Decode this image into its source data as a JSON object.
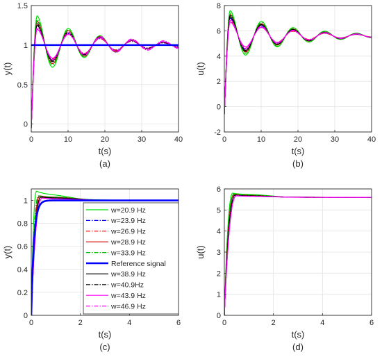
{
  "figure": {
    "legend_entries": [
      {
        "label": "w=20.9 Hz",
        "color": "#00e000",
        "dash": "solid",
        "width": 1.2
      },
      {
        "label": "w=23.9 Hz",
        "color": "#0000ff",
        "dash": "dashdot",
        "width": 1.2
      },
      {
        "label": "w=26.9 Hz",
        "color": "#ff0000",
        "dash": "dashdot",
        "width": 1.2
      },
      {
        "label": "w=28.9 Hz",
        "color": "#d00000",
        "dash": "solid",
        "width": 1.2
      },
      {
        "label": "w=33.9 Hz",
        "color": "#00c000",
        "dash": "dashdot",
        "width": 1.2
      },
      {
        "label": "Reference signal",
        "color": "#0000ff",
        "dash": "solid",
        "width": 2.6
      },
      {
        "label": "w=38.9 Hz",
        "color": "#000000",
        "dash": "solid",
        "width": 1.2
      },
      {
        "label": "w=40.9Hz",
        "color": "#000000",
        "dash": "dashdot",
        "width": 1.2
      },
      {
        "label": "w=43.9 Hz",
        "color": "#ff00ff",
        "dash": "solid",
        "width": 1.2
      },
      {
        "label": "w=46.9 Hz",
        "color": "#ff00ff",
        "dash": "dashdot",
        "width": 1.2
      }
    ],
    "legend_in_panel": "c",
    "legend_placement": "right"
  },
  "chart_data": [
    {
      "id": "a",
      "type": "line",
      "caption": "(a)",
      "xlabel": "t(s)",
      "ylabel": "y(t)",
      "xlim": [
        0,
        40
      ],
      "ylim": [
        -0.1,
        1.5
      ],
      "xticks": [
        0,
        10,
        20,
        30,
        40
      ],
      "yticks": [
        0,
        0.5,
        1,
        1.5
      ],
      "xtick_labels": [
        "0",
        "10",
        "20",
        "30",
        "40"
      ],
      "ytick_labels": [
        "0",
        "0.5",
        "1",
        "1.5"
      ],
      "grid": true,
      "settle": 1.0,
      "start": -0.05,
      "reference": 1.0,
      "series": [
        {
          "label": "w=20.9 Hz",
          "peaks": [
            [
              0,
              1.37
            ],
            [
              1.8,
              0.78
            ],
            [
              9.8,
              1.06
            ],
            [
              13.5,
              0.98
            ],
            [
              20,
              1.01
            ]
          ]
        },
        {
          "label": "w=23.9 Hz",
          "peaks": [
            [
              0,
              1.25
            ],
            [
              1.9,
              0.85
            ],
            [
              9.8,
              1.05
            ],
            [
              14,
              0.99
            ],
            [
              20,
              1.0
            ]
          ]
        },
        {
          "label": "w=26.9 Hz",
          "peaks": [
            [
              0,
              1.22
            ],
            [
              1.9,
              0.86
            ],
            [
              10,
              1.04
            ],
            [
              14,
              0.99
            ],
            [
              20,
              1.0
            ]
          ]
        },
        {
          "label": "w=28.9 Hz",
          "peaks": [
            [
              0,
              1.3
            ],
            [
              1.9,
              0.81
            ],
            [
              10.2,
              1.07
            ],
            [
              14,
              0.98
            ],
            [
              20,
              1.01
            ]
          ]
        },
        {
          "label": "w=33.9 Hz",
          "peaks": [
            [
              0,
              1.32
            ],
            [
              2.0,
              0.8
            ],
            [
              10.5,
              1.06
            ],
            [
              14.5,
              0.98
            ],
            [
              20,
              1.01
            ]
          ]
        },
        {
          "label": "w=38.9 Hz",
          "peaks": [
            [
              0,
              1.25
            ],
            [
              2.0,
              0.84
            ],
            [
              10,
              1.04
            ],
            [
              14,
              0.99
            ],
            [
              20,
              1.0
            ]
          ]
        },
        {
          "label": "w=40.9Hz",
          "peaks": [
            [
              0,
              1.27
            ],
            [
              2.0,
              0.83
            ],
            [
              10,
              1.05
            ],
            [
              14,
              0.99
            ],
            [
              20,
              1.0
            ]
          ]
        },
        {
          "label": "w=43.9 Hz",
          "peaks": [
            [
              0,
              1.2
            ],
            [
              2.0,
              0.86
            ],
            [
              10.5,
              1.04
            ],
            [
              14.5,
              0.99
            ],
            [
              20,
              1.0
            ]
          ]
        },
        {
          "label": "w=46.9 Hz",
          "peaks": [
            [
              0,
              1.22
            ],
            [
              2.0,
              0.84
            ],
            [
              10.5,
              1.05
            ],
            [
              14.5,
              0.99
            ],
            [
              20,
              1.0
            ]
          ]
        }
      ]
    },
    {
      "id": "b",
      "type": "line",
      "caption": "(b)",
      "xlabel": "t(s)",
      "ylabel": "u(t)",
      "xlim": [
        0,
        40
      ],
      "ylim": [
        -2,
        8
      ],
      "xticks": [
        0,
        10,
        20,
        30,
        40
      ],
      "yticks": [
        -2,
        0,
        2,
        4,
        6,
        8
      ],
      "xtick_labels": [
        "0",
        "10",
        "20",
        "30",
        "40"
      ],
      "ytick_labels": [
        "-2",
        "0",
        "2",
        "4",
        "6",
        "8"
      ],
      "grid": true,
      "settle": 5.6,
      "start": -0.6,
      "reference": null,
      "series": [
        {
          "label": "w=20.9 Hz",
          "peaks": [
            [
              0,
              7.6
            ],
            [
              1.5,
              4.4
            ],
            [
              9.5,
              6.0
            ],
            [
              13.5,
              5.45
            ],
            [
              20,
              5.65
            ]
          ]
        },
        {
          "label": "w=23.9 Hz",
          "peaks": [
            [
              0,
              7.0
            ],
            [
              1.5,
              4.8
            ],
            [
              9.5,
              5.9
            ],
            [
              13.5,
              5.5
            ],
            [
              20,
              5.62
            ]
          ]
        },
        {
          "label": "w=26.9 Hz",
          "peaks": [
            [
              0,
              6.8
            ],
            [
              1.5,
              4.9
            ],
            [
              9.5,
              5.85
            ],
            [
              13.5,
              5.52
            ],
            [
              20,
              5.6
            ]
          ]
        },
        {
          "label": "w=28.9 Hz",
          "peaks": [
            [
              0,
              7.3
            ],
            [
              1.5,
              4.6
            ],
            [
              9.8,
              5.95
            ],
            [
              13.8,
              5.48
            ],
            [
              20,
              5.63
            ]
          ]
        },
        {
          "label": "w=33.9 Hz",
          "peaks": [
            [
              0,
              7.4
            ],
            [
              1.6,
              4.5
            ],
            [
              10,
              6.0
            ],
            [
              14,
              5.45
            ],
            [
              20,
              5.65
            ]
          ]
        },
        {
          "label": "w=38.9 Hz",
          "peaks": [
            [
              0,
              7.1
            ],
            [
              1.6,
              4.7
            ],
            [
              9.8,
              5.9
            ],
            [
              14,
              5.5
            ],
            [
              20,
              5.62
            ]
          ]
        },
        {
          "label": "w=40.9Hz",
          "peaks": [
            [
              0,
              7.2
            ],
            [
              1.6,
              4.65
            ],
            [
              9.8,
              5.92
            ],
            [
              14,
              5.5
            ],
            [
              20,
              5.62
            ]
          ]
        },
        {
          "label": "w=43.9 Hz",
          "peaks": [
            [
              0,
              6.7
            ],
            [
              1.6,
              4.9
            ],
            [
              10,
              5.85
            ],
            [
              14.5,
              5.52
            ],
            [
              20,
              5.6
            ]
          ]
        },
        {
          "label": "w=46.9 Hz",
          "peaks": [
            [
              0,
              6.9
            ],
            [
              1.6,
              4.8
            ],
            [
              10,
              5.9
            ],
            [
              14.5,
              5.5
            ],
            [
              20,
              5.61
            ]
          ]
        }
      ]
    },
    {
      "id": "c",
      "type": "line",
      "caption": "(c)",
      "xlabel": "t(s)",
      "ylabel": "y(t)",
      "xlim": [
        0,
        6
      ],
      "ylim": [
        0,
        1.1
      ],
      "xticks": [
        0,
        2,
        4,
        6
      ],
      "yticks": [
        0,
        0.2,
        0.4,
        0.6,
        0.8,
        1.0
      ],
      "xtick_labels": [
        "0",
        "2",
        "4",
        "6"
      ],
      "ytick_labels": [
        "0",
        "0.2",
        "0.4",
        "0.6",
        "0.8",
        "1"
      ],
      "grid": true,
      "settle": 1.0,
      "start": 0,
      "reference": 1.0,
      "series": [
        {
          "label": "w=20.9 Hz",
          "rise": 0.07,
          "peak": 1.08,
          "peak_t": 0.22,
          "hump": 1.03,
          "hump_t": 1.2
        },
        {
          "label": "w=23.9 Hz",
          "rise": 0.08,
          "peak": 1.03,
          "peak_t": 0.3,
          "hump": 1.02,
          "hump_t": 1.3
        },
        {
          "label": "w=26.9 Hz",
          "rise": 0.08,
          "peak": 1.03,
          "peak_t": 0.3,
          "hump": 1.02,
          "hump_t": 1.3
        },
        {
          "label": "w=28.9 Hz",
          "rise": 0.09,
          "peak": 1.04,
          "peak_t": 0.35,
          "hump": 1.025,
          "hump_t": 1.3
        },
        {
          "label": "w=33.9 Hz",
          "rise": 0.08,
          "peak": 1.04,
          "peak_t": 0.3,
          "hump": 1.03,
          "hump_t": 1.4
        },
        {
          "label": "w=38.9 Hz",
          "rise": 0.1,
          "peak": 1.03,
          "peak_t": 0.4,
          "hump": 1.02,
          "hump_t": 1.4
        },
        {
          "label": "w=40.9Hz",
          "rise": 0.1,
          "peak": 1.03,
          "peak_t": 0.4,
          "hump": 1.02,
          "hump_t": 1.4
        },
        {
          "label": "w=43.9 Hz",
          "rise": 0.12,
          "peak": 1.02,
          "peak_t": 0.45,
          "hump": 1.01,
          "hump_t": 1.5
        },
        {
          "label": "w=46.9 Hz",
          "rise": 0.12,
          "peak": 1.02,
          "peak_t": 0.45,
          "hump": 1.01,
          "hump_t": 1.5
        }
      ]
    },
    {
      "id": "d",
      "type": "line",
      "caption": "(d)",
      "xlabel": "t(s)",
      "ylabel": "u(t)",
      "xlim": [
        0,
        6
      ],
      "ylim": [
        0,
        6
      ],
      "xticks": [
        0,
        2,
        4,
        6
      ],
      "yticks": [
        0,
        1,
        2,
        3,
        4,
        5,
        6
      ],
      "xtick_labels": [
        "0",
        "2",
        "4",
        "6"
      ],
      "ytick_labels": [
        "0",
        "1",
        "2",
        "3",
        "4",
        "5",
        "6"
      ],
      "grid": true,
      "settle": 5.6,
      "start": 0,
      "reference": null,
      "series": [
        {
          "label": "w=20.9 Hz",
          "rise": 0.08,
          "peak": 5.8,
          "peak_t": 0.35,
          "hump": 5.72,
          "hump_t": 1.3
        },
        {
          "label": "w=23.9 Hz",
          "rise": 0.09,
          "peak": 5.72,
          "peak_t": 0.4,
          "hump": 5.66,
          "hump_t": 1.3
        },
        {
          "label": "w=26.9 Hz",
          "rise": 0.09,
          "peak": 5.72,
          "peak_t": 0.4,
          "hump": 5.66,
          "hump_t": 1.3
        },
        {
          "label": "w=28.9 Hz",
          "rise": 0.1,
          "peak": 5.75,
          "peak_t": 0.4,
          "hump": 5.68,
          "hump_t": 1.4
        },
        {
          "label": "w=33.9 Hz",
          "rise": 0.09,
          "peak": 5.76,
          "peak_t": 0.4,
          "hump": 5.7,
          "hump_t": 1.4
        },
        {
          "label": "w=38.9 Hz",
          "rise": 0.11,
          "peak": 5.7,
          "peak_t": 0.45,
          "hump": 5.65,
          "hump_t": 1.4
        },
        {
          "label": "w=40.9Hz",
          "rise": 0.11,
          "peak": 5.71,
          "peak_t": 0.45,
          "hump": 5.66,
          "hump_t": 1.4
        },
        {
          "label": "w=43.9 Hz",
          "rise": 0.13,
          "peak": 5.67,
          "peak_t": 0.5,
          "hump": 5.63,
          "hump_t": 1.5
        },
        {
          "label": "w=46.9 Hz",
          "rise": 0.13,
          "peak": 5.68,
          "peak_t": 0.5,
          "hump": 5.64,
          "hump_t": 1.5
        }
      ]
    }
  ]
}
